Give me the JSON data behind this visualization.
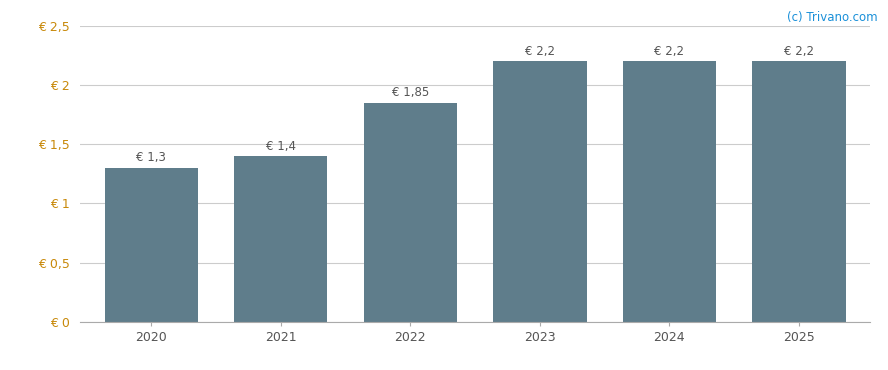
{
  "categories": [
    "2020",
    "2021",
    "2022",
    "2023",
    "2024",
    "2025"
  ],
  "values": [
    1.3,
    1.4,
    1.85,
    2.2,
    2.2,
    2.2
  ],
  "labels": [
    "€ 1,3",
    "€ 1,4",
    "€ 1,85",
    "€ 2,2",
    "€ 2,2",
    "€ 2,2"
  ],
  "bar_color": "#5f7d8b",
  "background_color": "#ffffff",
  "ylim": [
    0,
    2.5
  ],
  "yticks": [
    0,
    0.5,
    1.0,
    1.5,
    2.0,
    2.5
  ],
  "ytick_labels": [
    "€ 0",
    "€ 0,5",
    "€ 1",
    "€ 1,5",
    "€ 2",
    "€ 2,5"
  ],
  "watermark": "(c) Trivano.com",
  "watermark_color": "#1a90d9",
  "grid_color": "#cccccc",
  "tick_color": "#c8890a",
  "label_color": "#555555",
  "label_fontsize": 8.5,
  "tick_fontsize": 9,
  "watermark_fontsize": 8.5,
  "bar_width": 0.72
}
